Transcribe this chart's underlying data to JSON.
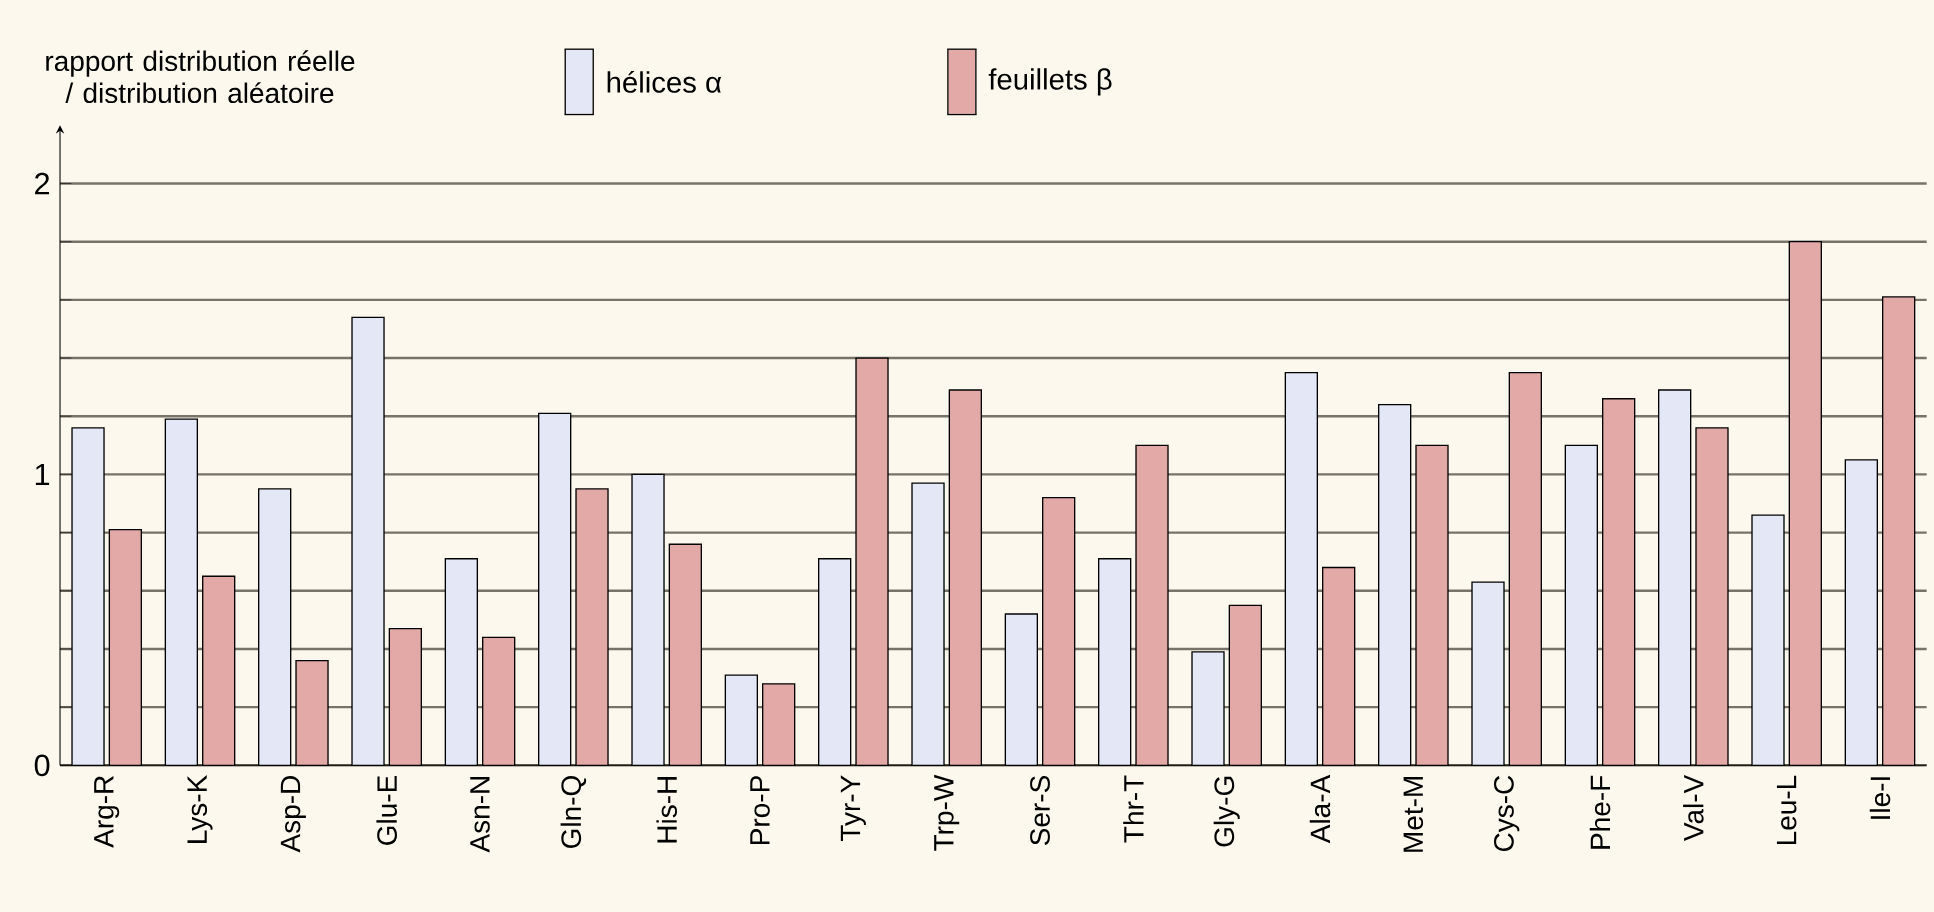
{
  "chart_data": {
    "type": "bar",
    "ylabel": "rapport distribution réelle / distribution aléatoire",
    "categories": [
      "Arg-R",
      "Lys-K",
      "Asp-D",
      "Glu-E",
      "Asn-N",
      "Gln-Q",
      "His-H",
      "Pro-P",
      "Tyr-Y",
      "Trp-W",
      "Ser-S",
      "Thr-T",
      "Gly-G",
      "Ala-A",
      "Met-M",
      "Cys-C",
      "Phe-F",
      "Val-V",
      "Leu-L",
      "Ile-I"
    ],
    "series": [
      {
        "name": "hélices α",
        "color": "#e4e8f6",
        "values": [
          1.16,
          1.19,
          0.95,
          1.54,
          0.71,
          1.21,
          1.0,
          0.31,
          0.71,
          0.97,
          0.52,
          0.71,
          0.39,
          1.35,
          1.24,
          0.63,
          1.1,
          1.29,
          0.86,
          1.05
        ]
      },
      {
        "name": "feuillets β",
        "color": "#e3a9a6",
        "values": [
          0.81,
          0.65,
          0.36,
          0.47,
          0.44,
          0.95,
          0.76,
          0.28,
          1.4,
          1.29,
          0.92,
          1.1,
          0.55,
          0.68,
          1.1,
          1.35,
          1.26,
          1.16,
          1.8,
          1.61
        ]
      }
    ],
    "ylim": [
      0,
      2.2
    ],
    "yticks": [
      0,
      {
        "value": 0.2,
        "label": null
      },
      {
        "value": 0.4,
        "label": null
      },
      {
        "value": 0.6,
        "label": null
      },
      {
        "value": 0.8,
        "label": null
      },
      1,
      {
        "value": 1.2,
        "label": null
      },
      {
        "value": 1.4,
        "label": null
      },
      {
        "value": 1.6,
        "label": null
      },
      {
        "value": 1.8,
        "label": null
      },
      2
    ],
    "grid": "y",
    "legend": "top"
  }
}
